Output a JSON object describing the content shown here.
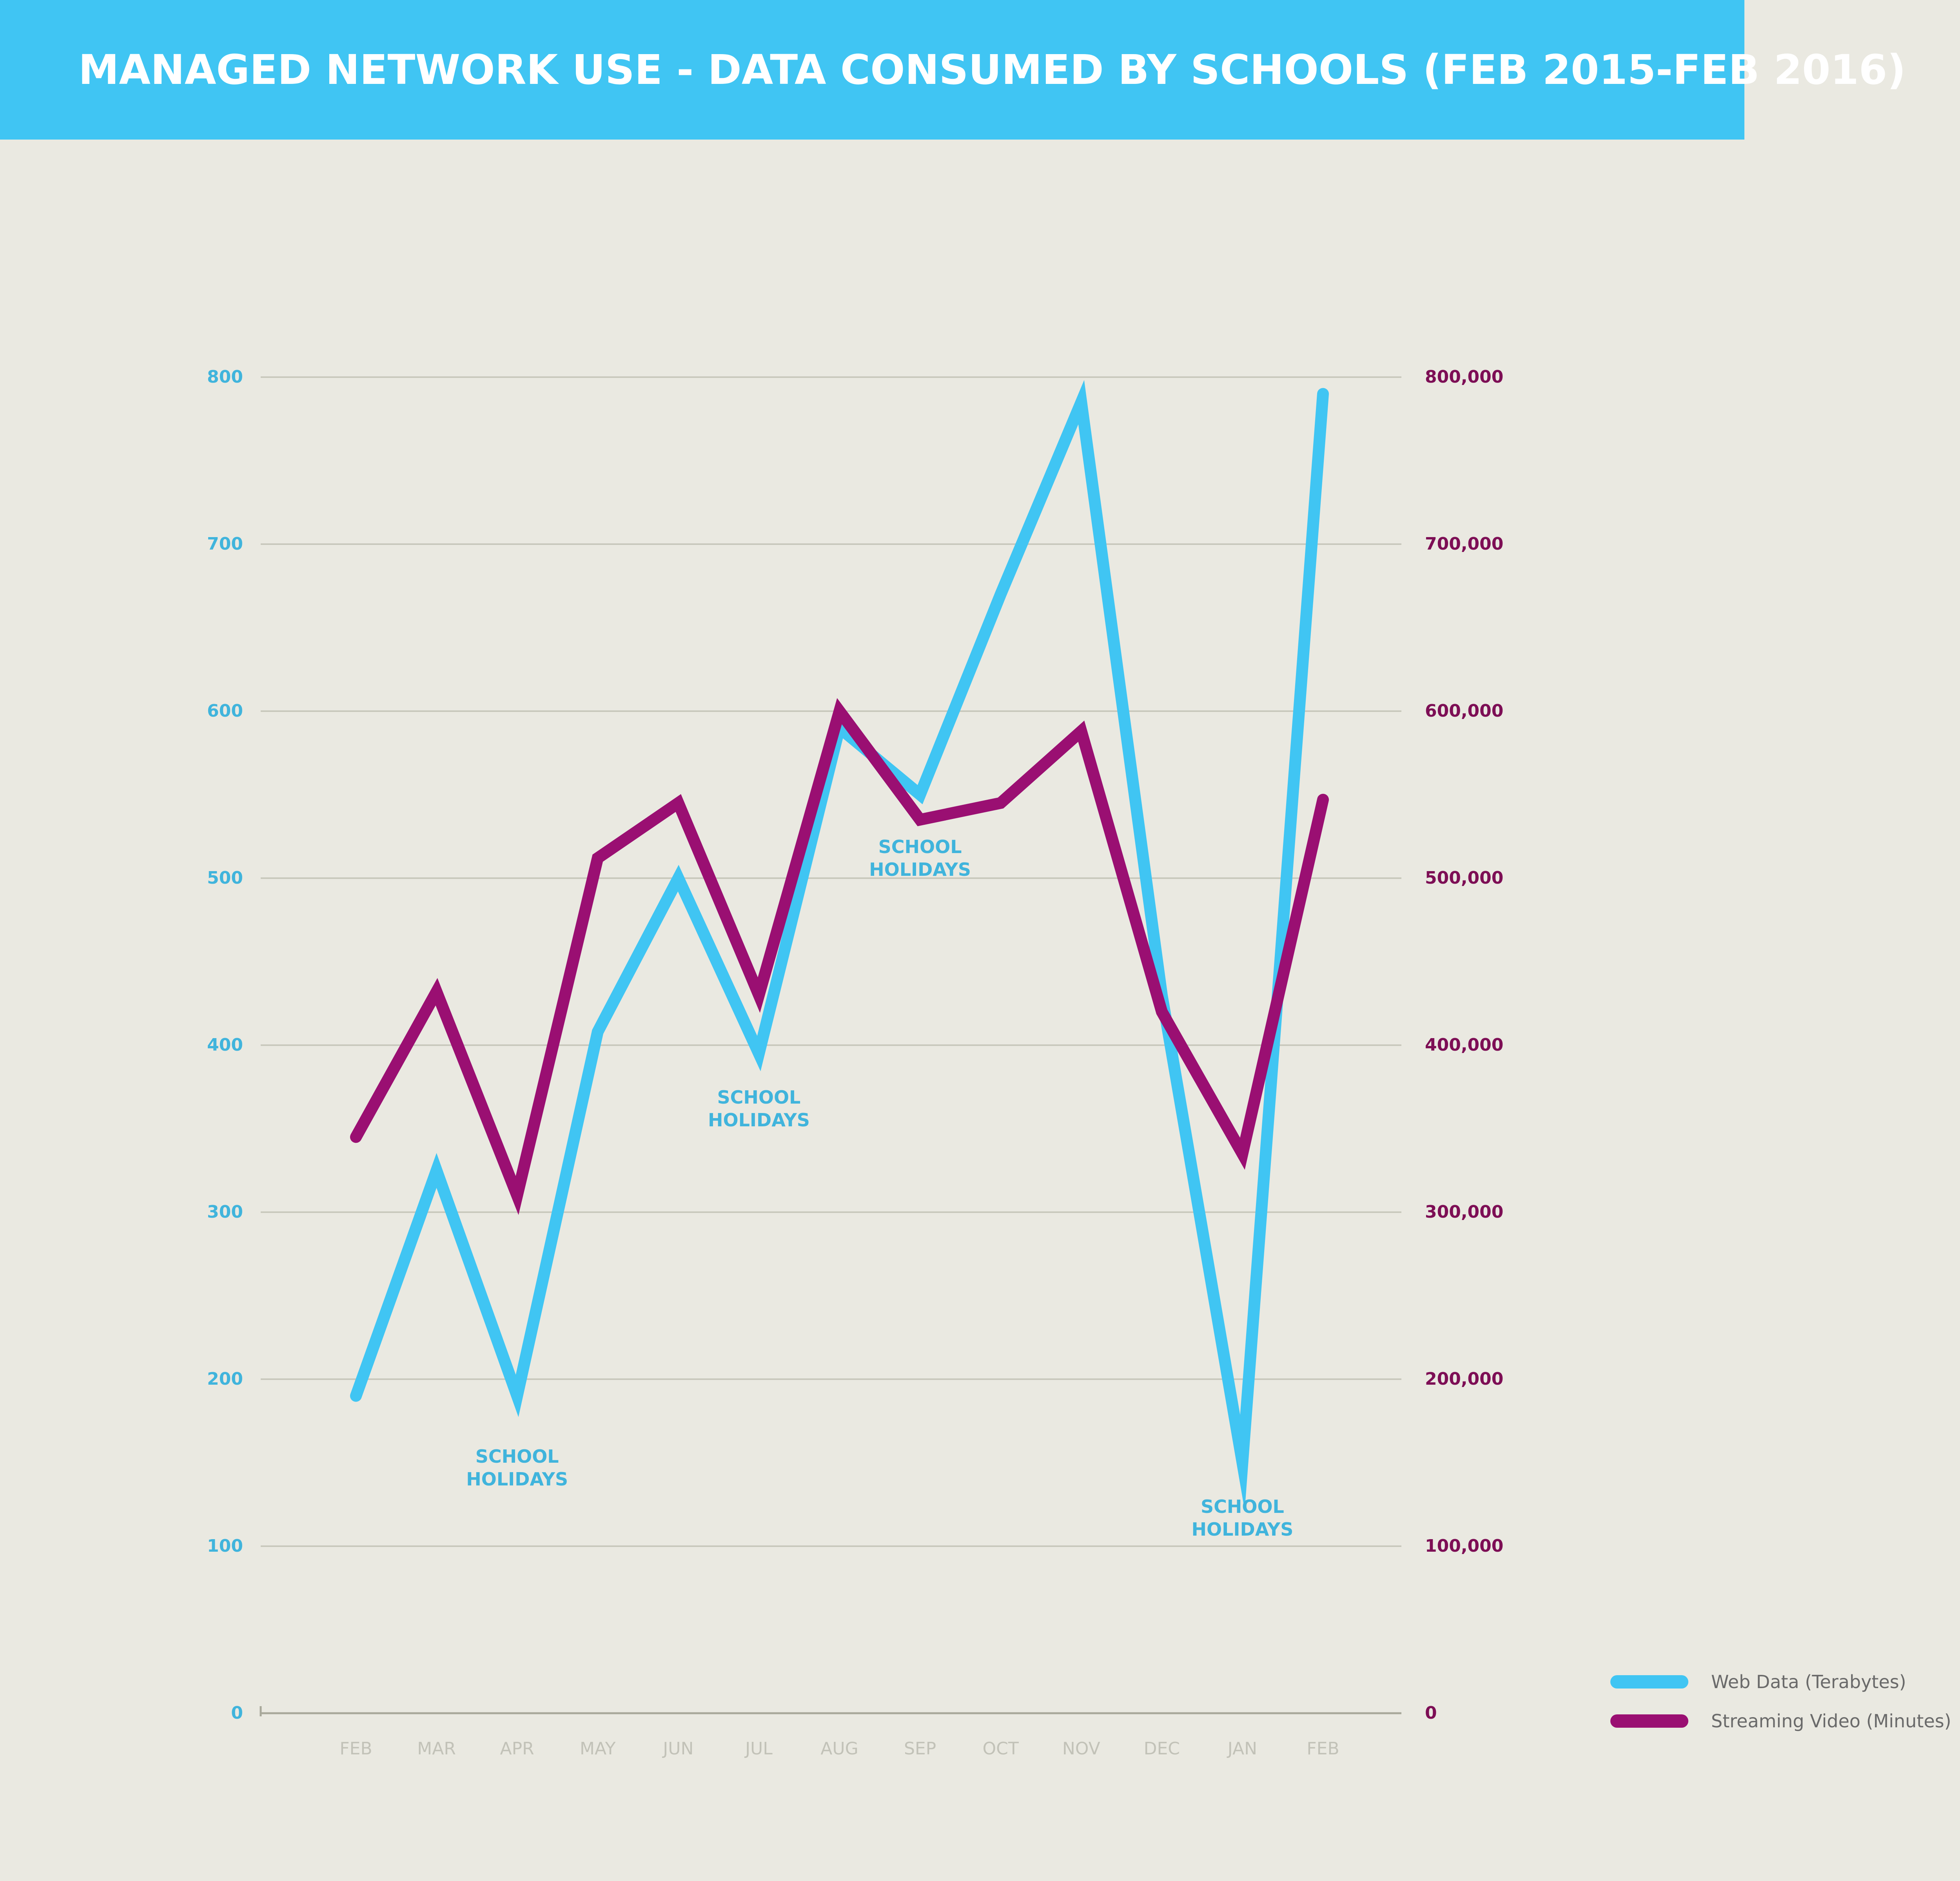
{
  "header": {
    "title": "MANAGED NETWORK USE - DATA CONSUMED BY SCHOOLS (FEB 2015-FEB 2016)"
  },
  "colors": {
    "header_bg": "#40c5f3",
    "web_data": "#40c5f3",
    "streaming_video": "#9a0f72",
    "right_axis_text": "#7d0e55",
    "background": "#eae9e1"
  },
  "chart_data": {
    "type": "line",
    "title": "MANAGED NETWORK USE - DATA CONSUMED BY SCHOOLS (FEB 2015-FEB 2016)",
    "categories": [
      "FEB",
      "MAR",
      "APR",
      "MAY",
      "JUN",
      "JUL",
      "AUG",
      "SEP",
      "OCT",
      "NOV",
      "DEC",
      "JAN",
      "FEB"
    ],
    "y_left": {
      "ylim": [
        0,
        800
      ],
      "ticks": [
        "0",
        "100",
        "200",
        "300",
        "400",
        "500",
        "600",
        "700",
        "800"
      ]
    },
    "y_right": {
      "ylim": [
        0,
        800000
      ],
      "ticks": [
        "0",
        "100,000",
        "200,000",
        "300,000",
        "400,000",
        "500,000",
        "600,000",
        "700,000",
        "800,000"
      ]
    },
    "grid": true,
    "legend_position": "bottom-right",
    "series": [
      {
        "name": "Web Data (Terabytes)",
        "axis": "left",
        "color": "#40c5f3",
        "values": [
          190,
          325,
          190,
          408,
          500,
          395,
          590,
          550,
          670,
          785,
          430,
          150,
          790
        ]
      },
      {
        "name": "Streaming Video (Minutes)",
        "axis": "right",
        "color": "#9a0f72",
        "values": [
          345000,
          432000,
          310000,
          512000,
          545000,
          430000,
          600000,
          535000,
          545000,
          588000,
          420000,
          335000,
          547000
        ]
      }
    ],
    "annotations": [
      {
        "lines": [
          "SCHOOL",
          "HOLIDAYS"
        ],
        "month_index": 2,
        "value": 150
      },
      {
        "lines": [
          "SCHOOL",
          "HOLIDAYS"
        ],
        "month_index": 5,
        "value": 365
      },
      {
        "lines": [
          "SCHOOL",
          "HOLIDAYS"
        ],
        "month_index": 7,
        "value": 515
      },
      {
        "lines": [
          "SCHOOL",
          "HOLIDAYS"
        ],
        "month_index": 11,
        "value": 120
      }
    ]
  }
}
